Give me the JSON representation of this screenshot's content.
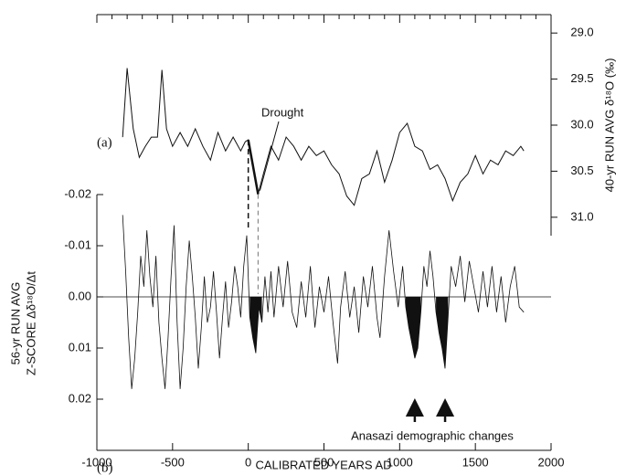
{
  "chart_data": [
    {
      "type": "line",
      "panel_label": "(a)",
      "ylabel": "40-yr RUN AVG δ¹⁸O (‰)",
      "color": "#111",
      "xlim": [
        -1000,
        2000
      ],
      "xticks": [
        -1000,
        -500,
        0,
        500,
        1000,
        1500,
        2000
      ],
      "y2lim": [
        31.2,
        28.8
      ],
      "y2ticks": [
        {
          "value": 29,
          "label": "29.0"
        },
        29.5,
        {
          "value": 30,
          "label": "30.0"
        },
        30.5,
        {
          "value": 31,
          "label": "31.0"
        }
      ],
      "annotation": {
        "text": "Drought",
        "span": [
          0,
          65
        ]
      },
      "x": [
        -830,
        -800,
        -760,
        -720,
        -680,
        -640,
        -600,
        -570,
        -540,
        -500,
        -450,
        -400,
        -350,
        -300,
        -250,
        -200,
        -150,
        -100,
        -50,
        -20,
        0,
        65,
        100,
        150,
        200,
        250,
        300,
        350,
        400,
        450,
        500,
        550,
        600,
        650,
        700,
        750,
        800,
        850,
        900,
        950,
        1000,
        1050,
        1100,
        1150,
        1200,
        1250,
        1300,
        1350,
        1400,
        1450,
        1500,
        1550,
        1600,
        1650,
        1700,
        1750,
        1800,
        1820
      ],
      "values": [
        30.13,
        29.38,
        30.04,
        30.35,
        30.23,
        30.13,
        30.13,
        29.4,
        30.04,
        30.23,
        30.08,
        30.23,
        30.04,
        30.23,
        30.38,
        30.08,
        30.28,
        30.13,
        30.28,
        30.18,
        30.16,
        30.75,
        30.53,
        30.23,
        30.38,
        30.13,
        30.23,
        30.38,
        30.23,
        30.33,
        30.28,
        30.43,
        30.53,
        30.77,
        30.87,
        30.58,
        30.53,
        30.28,
        30.62,
        30.38,
        30.08,
        29.98,
        30.23,
        30.28,
        30.48,
        30.43,
        30.58,
        30.82,
        30.62,
        30.53,
        30.33,
        30.53,
        30.38,
        30.43,
        30.28,
        30.33,
        30.23,
        30.28
      ]
    },
    {
      "type": "line",
      "panel_label": "(b)",
      "xlabel": "CALIBRATED YEARS AD",
      "ylabel": [
        "56-yr RUN AVG",
        "Z-SCORE Δδ¹⁸O/Δt"
      ],
      "color": "#111",
      "xlim": [
        -1000,
        2000
      ],
      "xticks": [
        -1000,
        -500,
        0,
        500,
        1000,
        1500,
        2000
      ],
      "ylim": [
        0.03,
        -0.02
      ],
      "yticks": [
        -0.02,
        -0.01,
        {
          "value": 0,
          "label": "0.00"
        },
        0.01,
        0.02
      ],
      "filled_spans": [
        [
          0,
          100
        ],
        [
          1040,
          1140
        ],
        [
          1240,
          1320
        ]
      ],
      "annotation": {
        "text": "Anasazi demographic changes",
        "x": [
          1100,
          1300
        ]
      },
      "x": [
        -830,
        -810,
        -790,
        -770,
        -750,
        -730,
        -710,
        -690,
        -670,
        -650,
        -630,
        -610,
        -590,
        -570,
        -550,
        -530,
        -510,
        -490,
        -470,
        -450,
        -430,
        -410,
        -390,
        -370,
        -350,
        -330,
        -310,
        -290,
        -270,
        -250,
        -230,
        -210,
        -190,
        -170,
        -150,
        -130,
        -110,
        -90,
        -70,
        -50,
        -30,
        -10,
        10,
        30,
        50,
        70,
        90,
        110,
        130,
        150,
        170,
        200,
        230,
        260,
        290,
        320,
        350,
        380,
        410,
        440,
        470,
        500,
        530,
        560,
        590,
        610,
        640,
        670,
        700,
        730,
        760,
        790,
        820,
        850,
        870,
        900,
        930,
        960,
        990,
        1020,
        1040,
        1060,
        1080,
        1100,
        1120,
        1140,
        1160,
        1180,
        1200,
        1220,
        1240,
        1260,
        1280,
        1300,
        1320,
        1340,
        1370,
        1400,
        1430,
        1460,
        1490,
        1520,
        1550,
        1580,
        1610,
        1640,
        1670,
        1700,
        1730,
        1760,
        1790,
        1820
      ],
      "values": [
        -0.016,
        -0.005,
        0.008,
        0.018,
        0.012,
        0.003,
        -0.008,
        -0.002,
        -0.013,
        -0.004,
        0.002,
        -0.008,
        0.005,
        0.012,
        0.018,
        0.008,
        -0.004,
        -0.014,
        0.005,
        0.018,
        0.01,
        -0.002,
        -0.011,
        -0.004,
        0.004,
        0.014,
        0.006,
        -0.004,
        0.005,
        0.002,
        -0.005,
        0.003,
        0.012,
        0.004,
        -0.003,
        0.006,
        0.001,
        -0.006,
        -0.002,
        0.004,
        -0.006,
        -0.012,
        0.004,
        0.008,
        0.011,
        0.002,
        0.005,
        -0.004,
        0.003,
        -0.005,
        0.004,
        -0.006,
        0.002,
        -0.007,
        0.003,
        0.006,
        -0.003,
        0.004,
        -0.006,
        0.006,
        -0.002,
        0.003,
        -0.004,
        0.005,
        0.013,
        0.002,
        -0.005,
        0.004,
        -0.002,
        0.007,
        -0.004,
        0.002,
        -0.006,
        0.004,
        0.008,
        -0.004,
        -0.013,
        -0.005,
        0.002,
        -0.006,
        0.002,
        0.006,
        0.009,
        0.012,
        0.01,
        0.003,
        -0.006,
        -0.002,
        -0.009,
        -0.004,
        0.003,
        0.007,
        0.01,
        0.014,
        0.004,
        -0.006,
        -0.002,
        -0.008,
        0.001,
        -0.007,
        -0.002,
        0.003,
        -0.005,
        0.002,
        -0.006,
        0.003,
        -0.004,
        0.005,
        -0.002,
        -0.006,
        0.002,
        0.003
      ]
    }
  ]
}
